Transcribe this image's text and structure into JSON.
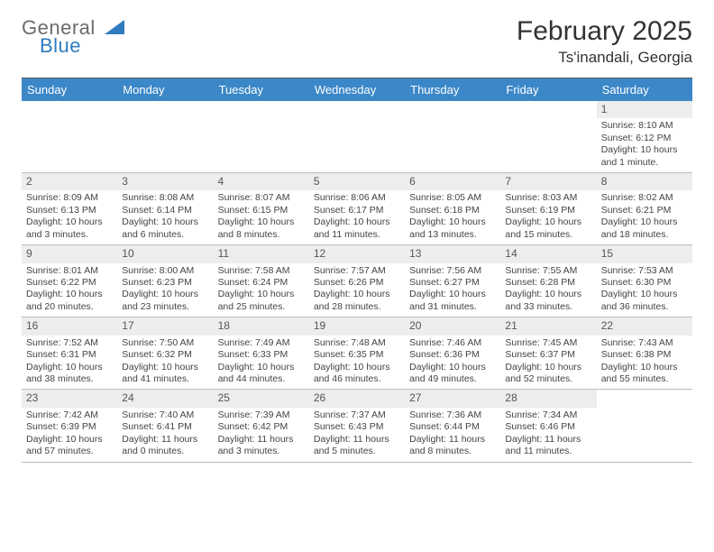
{
  "logo": {
    "line1": "General",
    "line2": "Blue"
  },
  "title": {
    "month": "February 2025",
    "location": "Ts'inandali, Georgia"
  },
  "colors": {
    "header_bg": "#3b87c8",
    "header_text": "#ffffff",
    "daynum_bg": "#ededed",
    "border": "#bdbdbd",
    "top_rule": "#555555",
    "text": "#444444",
    "logo_gray": "#6b6b6b",
    "logo_blue": "#2f7bbf"
  },
  "day_names": [
    "Sunday",
    "Monday",
    "Tuesday",
    "Wednesday",
    "Thursday",
    "Friday",
    "Saturday"
  ],
  "weeks": [
    [
      null,
      null,
      null,
      null,
      null,
      null,
      {
        "n": "1",
        "sunrise": "8:10 AM",
        "sunset": "6:12 PM",
        "daylight": "10 hours and 1 minute."
      }
    ],
    [
      {
        "n": "2",
        "sunrise": "8:09 AM",
        "sunset": "6:13 PM",
        "daylight": "10 hours and 3 minutes."
      },
      {
        "n": "3",
        "sunrise": "8:08 AM",
        "sunset": "6:14 PM",
        "daylight": "10 hours and 6 minutes."
      },
      {
        "n": "4",
        "sunrise": "8:07 AM",
        "sunset": "6:15 PM",
        "daylight": "10 hours and 8 minutes."
      },
      {
        "n": "5",
        "sunrise": "8:06 AM",
        "sunset": "6:17 PM",
        "daylight": "10 hours and 11 minutes."
      },
      {
        "n": "6",
        "sunrise": "8:05 AM",
        "sunset": "6:18 PM",
        "daylight": "10 hours and 13 minutes."
      },
      {
        "n": "7",
        "sunrise": "8:03 AM",
        "sunset": "6:19 PM",
        "daylight": "10 hours and 15 minutes."
      },
      {
        "n": "8",
        "sunrise": "8:02 AM",
        "sunset": "6:21 PM",
        "daylight": "10 hours and 18 minutes."
      }
    ],
    [
      {
        "n": "9",
        "sunrise": "8:01 AM",
        "sunset": "6:22 PM",
        "daylight": "10 hours and 20 minutes."
      },
      {
        "n": "10",
        "sunrise": "8:00 AM",
        "sunset": "6:23 PM",
        "daylight": "10 hours and 23 minutes."
      },
      {
        "n": "11",
        "sunrise": "7:58 AM",
        "sunset": "6:24 PM",
        "daylight": "10 hours and 25 minutes."
      },
      {
        "n": "12",
        "sunrise": "7:57 AM",
        "sunset": "6:26 PM",
        "daylight": "10 hours and 28 minutes."
      },
      {
        "n": "13",
        "sunrise": "7:56 AM",
        "sunset": "6:27 PM",
        "daylight": "10 hours and 31 minutes."
      },
      {
        "n": "14",
        "sunrise": "7:55 AM",
        "sunset": "6:28 PM",
        "daylight": "10 hours and 33 minutes."
      },
      {
        "n": "15",
        "sunrise": "7:53 AM",
        "sunset": "6:30 PM",
        "daylight": "10 hours and 36 minutes."
      }
    ],
    [
      {
        "n": "16",
        "sunrise": "7:52 AM",
        "sunset": "6:31 PM",
        "daylight": "10 hours and 38 minutes."
      },
      {
        "n": "17",
        "sunrise": "7:50 AM",
        "sunset": "6:32 PM",
        "daylight": "10 hours and 41 minutes."
      },
      {
        "n": "18",
        "sunrise": "7:49 AM",
        "sunset": "6:33 PM",
        "daylight": "10 hours and 44 minutes."
      },
      {
        "n": "19",
        "sunrise": "7:48 AM",
        "sunset": "6:35 PM",
        "daylight": "10 hours and 46 minutes."
      },
      {
        "n": "20",
        "sunrise": "7:46 AM",
        "sunset": "6:36 PM",
        "daylight": "10 hours and 49 minutes."
      },
      {
        "n": "21",
        "sunrise": "7:45 AM",
        "sunset": "6:37 PM",
        "daylight": "10 hours and 52 minutes."
      },
      {
        "n": "22",
        "sunrise": "7:43 AM",
        "sunset": "6:38 PM",
        "daylight": "10 hours and 55 minutes."
      }
    ],
    [
      {
        "n": "23",
        "sunrise": "7:42 AM",
        "sunset": "6:39 PM",
        "daylight": "10 hours and 57 minutes."
      },
      {
        "n": "24",
        "sunrise": "7:40 AM",
        "sunset": "6:41 PM",
        "daylight": "11 hours and 0 minutes."
      },
      {
        "n": "25",
        "sunrise": "7:39 AM",
        "sunset": "6:42 PM",
        "daylight": "11 hours and 3 minutes."
      },
      {
        "n": "26",
        "sunrise": "7:37 AM",
        "sunset": "6:43 PM",
        "daylight": "11 hours and 5 minutes."
      },
      {
        "n": "27",
        "sunrise": "7:36 AM",
        "sunset": "6:44 PM",
        "daylight": "11 hours and 8 minutes."
      },
      {
        "n": "28",
        "sunrise": "7:34 AM",
        "sunset": "6:46 PM",
        "daylight": "11 hours and 11 minutes."
      },
      null
    ]
  ],
  "labels": {
    "sunrise": "Sunrise:",
    "sunset": "Sunset:",
    "daylight": "Daylight:"
  }
}
